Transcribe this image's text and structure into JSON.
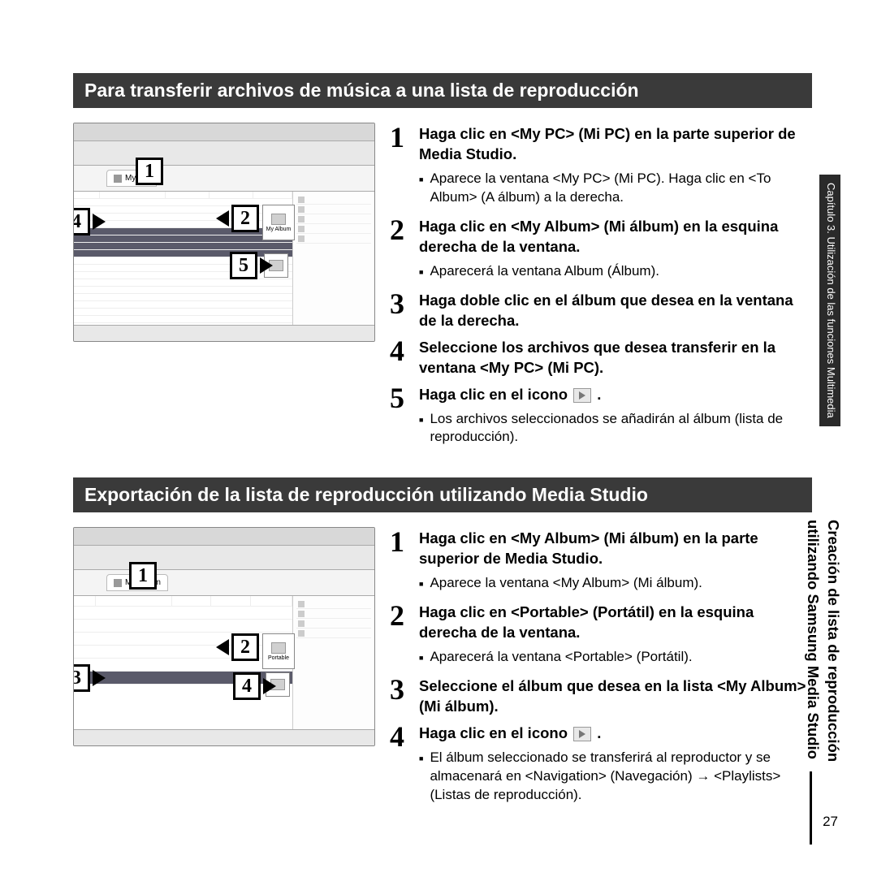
{
  "heading1": "Para transferir archivos de música a una lista de reproducción",
  "heading2": "Exportación de la lista de reproducción utilizando Media Studio",
  "side_tab": "Capítulo 3. Utilización de las funciones Multimedia",
  "side_title_line1": "Creación de lista de reproducción",
  "side_title_line2": "utilizando Samsung Media Studio",
  "page_num": "27",
  "sec1_tab": "My PC",
  "sec2_tab": "My Album",
  "mid_label1": "My Album",
  "mid_label2": "Portable",
  "steps1": [
    {
      "n": "1",
      "title": "Haga clic en <My PC> (Mi PC) en la parte superior de Media Studio.",
      "sub": [
        "Aparece la ventana <My PC> (Mi PC). Haga clic en <To Album> (A álbum) a la derecha."
      ]
    },
    {
      "n": "2",
      "title": "Haga clic en <My Album> (Mi álbum) en la esquina derecha de la ventana.",
      "sub": [
        "Aparecerá la ventana Album (Álbum)."
      ]
    },
    {
      "n": "3",
      "title": "Haga doble clic en el álbum que desea en la ventana de la derecha.",
      "sub": []
    },
    {
      "n": "4",
      "title": "Seleccione los archivos que desea transferir en la ventana <My PC> (Mi PC).",
      "sub": []
    },
    {
      "n": "5",
      "title": "Haga clic en el icono",
      "icon": true,
      "post": ".",
      "sub": [
        "Los archivos seleccionados se añadirán al álbum (lista de reproducción)."
      ]
    }
  ],
  "steps2": [
    {
      "n": "1",
      "title": "Haga clic en <My Album> (Mi álbum) en la parte superior de Media Studio.",
      "sub": [
        "Aparece la ventana <My Album> (Mi álbum)."
      ]
    },
    {
      "n": "2",
      "title": "Haga clic en <Portable> (Portátil) en la esquina derecha de la ventana.",
      "sub": [
        "Aparecerá la ventana <Portable> (Portátil)."
      ]
    },
    {
      "n": "3",
      "title": "Seleccione el álbum que desea en la lista <My Album> (Mi álbum).",
      "sub": []
    },
    {
      "n": "4",
      "title": "Haga clic en el icono",
      "icon": true,
      "post": ".",
      "sub": [
        "El álbum seleccionado se transferirá al reproductor y se almacenará en <Navigation> (Navegación) → <Playlists> (Listas de reproducción)."
      ]
    }
  ]
}
